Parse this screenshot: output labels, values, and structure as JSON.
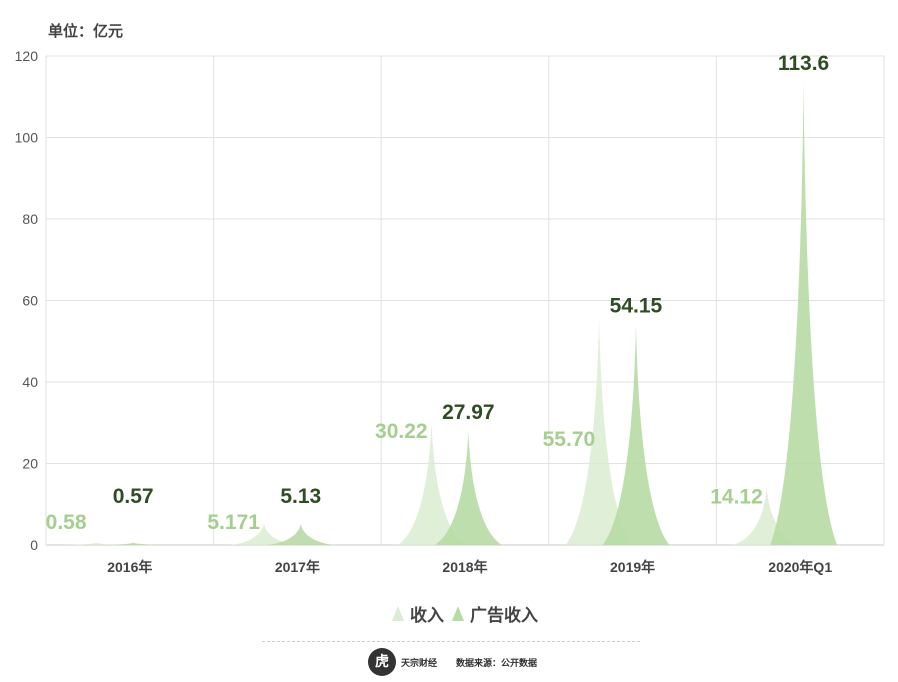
{
  "unit_label": "单位：亿元",
  "chart_data": {
    "type": "area",
    "categories": [
      "2016年",
      "2017年",
      "2018年",
      "2019年",
      "2020年Q1"
    ],
    "series": [
      {
        "name": "收入",
        "values": [
          0.58,
          5.171,
          30.22,
          55.7,
          14.12
        ],
        "labels": [
          "0.58",
          "5.171",
          "30.22",
          "55.70",
          "14.12"
        ],
        "color": "#dbecd0"
      },
      {
        "name": "广告收入",
        "values": [
          0.57,
          5.13,
          27.97,
          54.15,
          113.6
        ],
        "labels": [
          "0.57",
          "5.13",
          "27.97",
          "54.15",
          "113.6"
        ],
        "color": "#b7dba4"
      }
    ],
    "yticks": [
      0,
      20,
      40,
      60,
      80,
      100,
      120
    ],
    "ylim": [
      0,
      120
    ],
    "grid": true,
    "legend": "bottom-center",
    "label_colors": [
      "#a5cf8e",
      "#2f4d22"
    ]
  },
  "footer": {
    "logo_glyph": "虎",
    "brand": "天宗财经",
    "source": "数据来源：公开数据"
  }
}
